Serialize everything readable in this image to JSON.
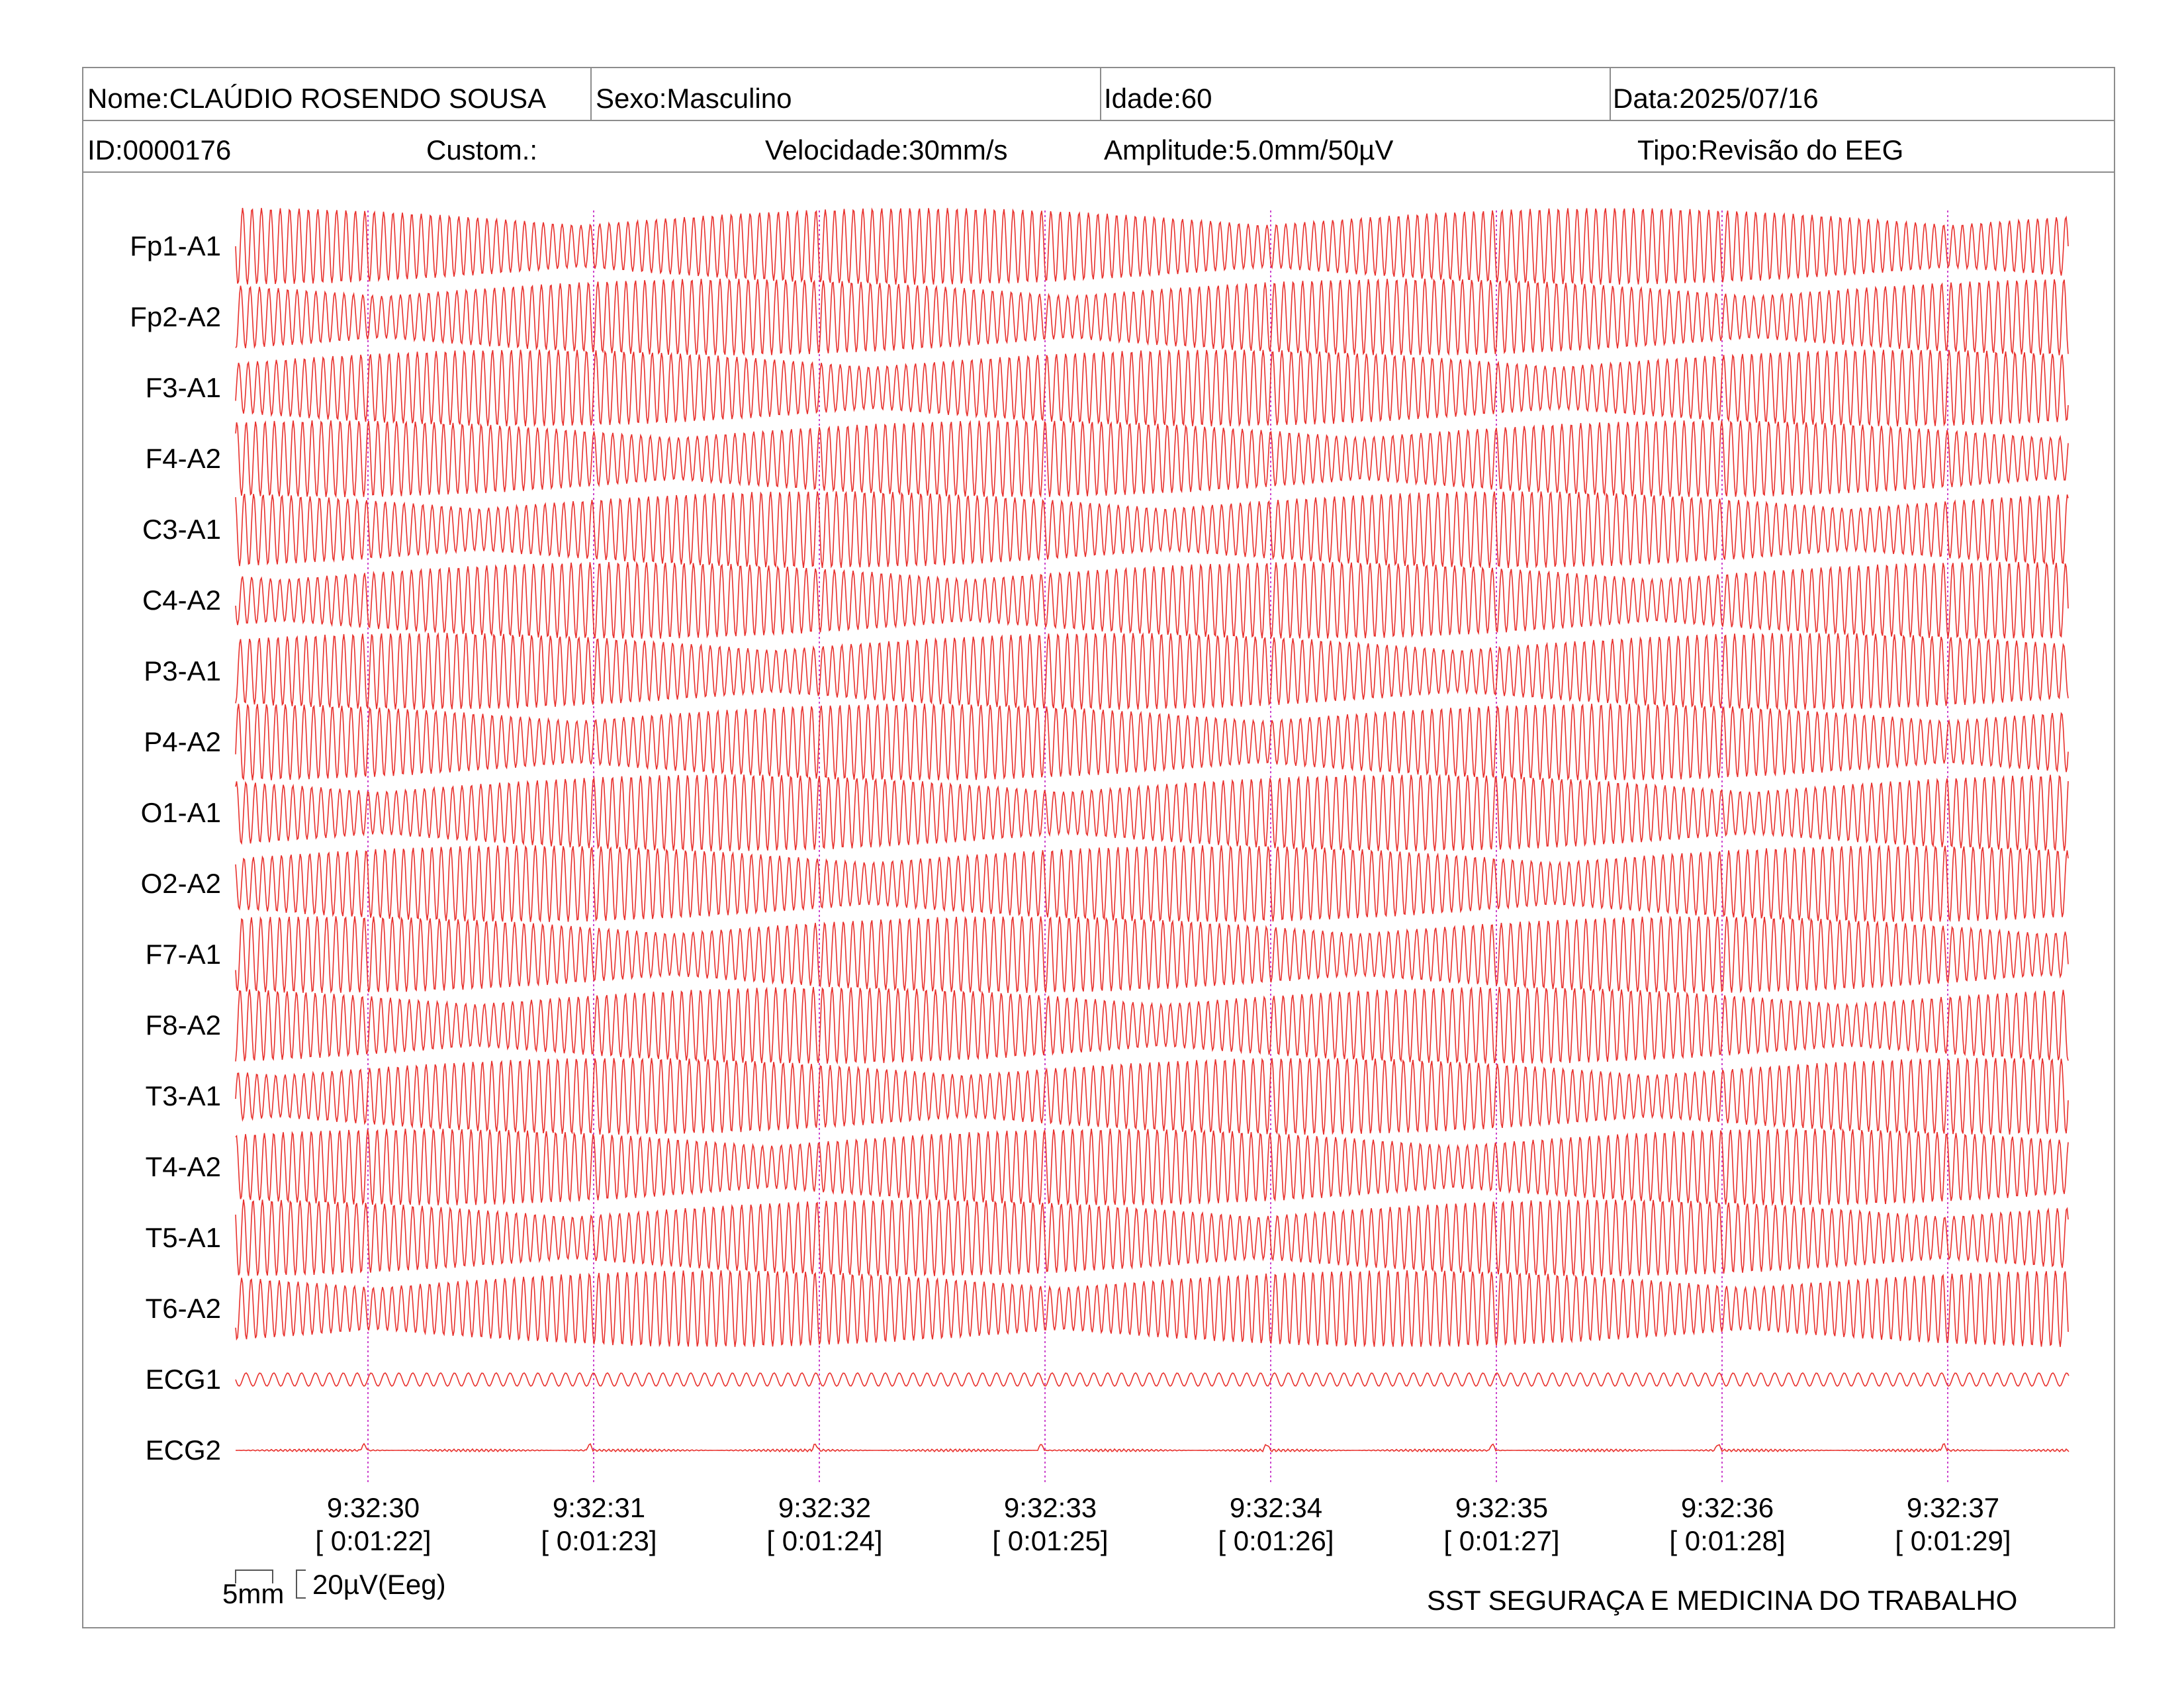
{
  "header": {
    "nome": "Nome:CLAÚDIO ROSENDO SOUSA",
    "sexo": "Sexo:Masculino",
    "idade": "Idade:60",
    "data": "Data:2025/07/16",
    "id": "ID:0000176",
    "custom": "Custom.:",
    "velocidade": "Velocidade:30mm/s",
    "amplitude": "Amplitude:5.0mm/50µV",
    "tipo": "Tipo:Revisão do EEG"
  },
  "footer": {
    "scale_time": "5mm",
    "scale_amp": "20µV(Eeg)",
    "organization": "SST SEGURAÇA E MEDICINA DO TRABALHO"
  },
  "colors": {
    "trace": "#e8302c",
    "marker": "#cc44cc",
    "border": "#8c8c8c"
  },
  "chart_data": {
    "type": "line",
    "channels": [
      "Fp1-A1",
      "Fp2-A2",
      "F3-A1",
      "F4-A2",
      "C3-A1",
      "C4-A2",
      "P3-A1",
      "P4-A2",
      "O1-A1",
      "O2-A2",
      "F7-A1",
      "F8-A2",
      "T3-A1",
      "T4-A2",
      "T5-A1",
      "T6-A2",
      "ECG1",
      "ECG2"
    ],
    "time_markers": [
      {
        "clock": "9:32:30",
        "elapsed": "[ 0:01:22]"
      },
      {
        "clock": "9:32:31",
        "elapsed": "[ 0:01:23]"
      },
      {
        "clock": "9:32:32",
        "elapsed": "[ 0:01:24]"
      },
      {
        "clock": "9:32:33",
        "elapsed": "[ 0:01:25]"
      },
      {
        "clock": "9:32:34",
        "elapsed": "[ 0:01:26]"
      },
      {
        "clock": "9:32:35",
        "elapsed": "[ 0:01:27]"
      },
      {
        "clock": "9:32:36",
        "elapsed": "[ 0:01:28]"
      },
      {
        "clock": "9:32:37",
        "elapsed": "[ 0:01:29]"
      }
    ],
    "speed_mm_per_s": 30,
    "amplitude_mm_per_50uV": 5.0
  }
}
